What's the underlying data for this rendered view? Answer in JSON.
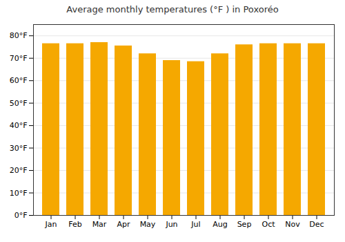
{
  "chart_data": {
    "type": "bar",
    "title": "Average monthly temperatures (°F ) in Poxoréo",
    "categories": [
      "Jan",
      "Feb",
      "Mar",
      "Apr",
      "May",
      "Jun",
      "Jul",
      "Aug",
      "Sep",
      "Oct",
      "Nov",
      "Dec"
    ],
    "values": [
      76.5,
      76.5,
      77.0,
      75.5,
      72.0,
      69.0,
      68.5,
      72.0,
      76.0,
      76.5,
      76.5,
      76.5
    ],
    "color": "#F5A800",
    "ylim": [
      0,
      85
    ],
    "yticks": [
      {
        "value": 0,
        "label": "0°F"
      },
      {
        "value": 10,
        "label": "10°F"
      },
      {
        "value": 20,
        "label": "20°F"
      },
      {
        "value": 30,
        "label": "30°F"
      },
      {
        "value": 40,
        "label": "40°F"
      },
      {
        "value": 50,
        "label": "50°F"
      },
      {
        "value": 60,
        "label": "60°F"
      },
      {
        "value": 70,
        "label": "70°F"
      },
      {
        "value": 80,
        "label": "80°F"
      }
    ],
    "grid": true
  }
}
